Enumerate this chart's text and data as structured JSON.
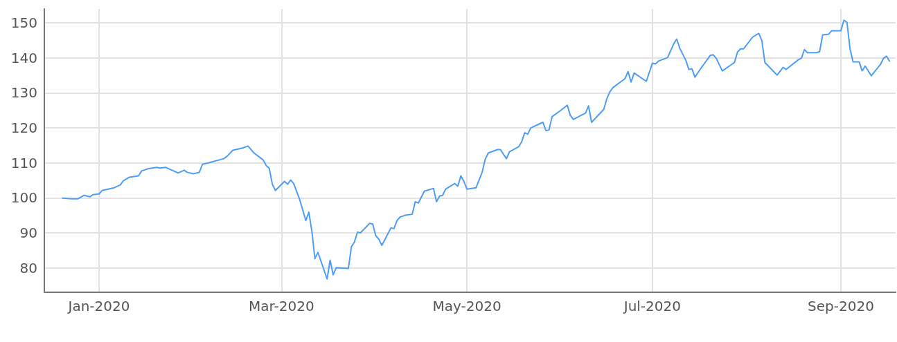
{
  "chart_data": {
    "type": "line",
    "color": "#4e9df5",
    "line_style": "solid",
    "marker": "none",
    "grid": true,
    "x": [
      "2019-12-20",
      "2019-12-23",
      "2019-12-25",
      "2019-12-27",
      "2019-12-29",
      "2019-12-30",
      "2020-01-01",
      "2020-01-02",
      "2020-01-06",
      "2020-01-08",
      "2020-01-09",
      "2020-01-11",
      "2020-01-14",
      "2020-01-15",
      "2020-01-17",
      "2020-01-20",
      "2020-01-21",
      "2020-01-23",
      "2020-01-27",
      "2020-01-29",
      "2020-01-30",
      "2020-02-01",
      "2020-02-03",
      "2020-02-04",
      "2020-02-06",
      "2020-02-11",
      "2020-02-12",
      "2020-02-14",
      "2020-02-17",
      "2020-02-19",
      "2020-02-21",
      "2020-02-24",
      "2020-02-25",
      "2020-02-26",
      "2020-02-27",
      "2020-02-28",
      "2020-03-02",
      "2020-03-03",
      "2020-03-04",
      "2020-03-05",
      "2020-03-07",
      "2020-03-09",
      "2020-03-10",
      "2020-03-11",
      "2020-03-12",
      "2020-03-13",
      "2020-03-16",
      "2020-03-17",
      "2020-03-18",
      "2020-03-19",
      "2020-03-23",
      "2020-03-24",
      "2020-03-25",
      "2020-03-26",
      "2020-03-27",
      "2020-03-30",
      "2020-03-31",
      "2020-04-01",
      "2020-04-02",
      "2020-04-03",
      "2020-04-06",
      "2020-04-07",
      "2020-04-08",
      "2020-04-09",
      "2020-04-11",
      "2020-04-13",
      "2020-04-14",
      "2020-04-15",
      "2020-04-17",
      "2020-04-20",
      "2020-04-21",
      "2020-04-22",
      "2020-04-23",
      "2020-04-24",
      "2020-04-27",
      "2020-04-28",
      "2020-04-29",
      "2020-04-30",
      "2020-05-01",
      "2020-05-04",
      "2020-05-06",
      "2020-05-07",
      "2020-05-08",
      "2020-05-11",
      "2020-05-12",
      "2020-05-14",
      "2020-05-15",
      "2020-05-18",
      "2020-05-19",
      "2020-05-20",
      "2020-05-21",
      "2020-05-22",
      "2020-05-25",
      "2020-05-26",
      "2020-05-27",
      "2020-05-28",
      "2020-05-29",
      "2020-06-01",
      "2020-06-03",
      "2020-06-04",
      "2020-06-05",
      "2020-06-08",
      "2020-06-09",
      "2020-06-10",
      "2020-06-11",
      "2020-06-15",
      "2020-06-16",
      "2020-06-17",
      "2020-06-18",
      "2020-06-22",
      "2020-06-23",
      "2020-06-24",
      "2020-06-25",
      "2020-06-29",
      "2020-07-01",
      "2020-07-02",
      "2020-07-03",
      "2020-07-06",
      "2020-07-08",
      "2020-07-09",
      "2020-07-10",
      "2020-07-12",
      "2020-07-13",
      "2020-07-14",
      "2020-07-15",
      "2020-07-17",
      "2020-07-20",
      "2020-07-21",
      "2020-07-22",
      "2020-07-24",
      "2020-07-27",
      "2020-07-28",
      "2020-07-29",
      "2020-07-30",
      "2020-07-31",
      "2020-08-03",
      "2020-08-05",
      "2020-08-06",
      "2020-08-07",
      "2020-08-09",
      "2020-08-11",
      "2020-08-13",
      "2020-08-14",
      "2020-08-18",
      "2020-08-19",
      "2020-08-20",
      "2020-08-21",
      "2020-08-24",
      "2020-08-25",
      "2020-08-26",
      "2020-08-28",
      "2020-08-29",
      "2020-09-01",
      "2020-09-02",
      "2020-09-03",
      "2020-09-04",
      "2020-09-05",
      "2020-09-07",
      "2020-09-08",
      "2020-09-09",
      "2020-09-11",
      "2020-09-14",
      "2020-09-15",
      "2020-09-16",
      "2020-09-17"
    ],
    "values": [
      99.9,
      99.7,
      99.7,
      100.7,
      100.3,
      100.9,
      101.1,
      102.1,
      102.9,
      103.7,
      104.9,
      105.9,
      106.3,
      107.7,
      108.3,
      108.7,
      108.5,
      108.7,
      107.1,
      107.9,
      107.3,
      106.9,
      107.3,
      109.6,
      110.0,
      111.2,
      111.8,
      113.6,
      114.2,
      114.8,
      112.8,
      110.8,
      109.2,
      108.4,
      103.9,
      102.1,
      104.7,
      103.9,
      105.1,
      104.1,
      99.5,
      93.5,
      95.9,
      90.4,
      82.6,
      84.4,
      76.8,
      82.2,
      78.0,
      80.0,
      79.8,
      86.0,
      87.4,
      90.2,
      90.0,
      92.7,
      92.5,
      89.2,
      88.2,
      86.4,
      91.4,
      91.2,
      93.5,
      94.5,
      95.1,
      95.3,
      98.9,
      98.5,
      101.9,
      102.7,
      98.9,
      100.5,
      100.7,
      102.5,
      104.1,
      103.3,
      106.3,
      104.7,
      102.5,
      102.9,
      107.3,
      111.0,
      112.8,
      113.8,
      113.8,
      111.2,
      113.2,
      114.6,
      116.0,
      118.6,
      118.2,
      120.0,
      121.2,
      121.6,
      119.2,
      119.4,
      123.2,
      125.1,
      126.5,
      123.6,
      122.4,
      123.8,
      124.2,
      126.3,
      121.6,
      125.3,
      128.3,
      130.3,
      131.5,
      134.1,
      136.1,
      133.1,
      135.7,
      133.3,
      138.5,
      138.3,
      139.1,
      140.1,
      144.0,
      145.4,
      142.8,
      139.3,
      136.7,
      136.9,
      134.5,
      137.1,
      140.7,
      140.9,
      139.9,
      136.3,
      138.1,
      138.7,
      141.7,
      142.6,
      142.6,
      146.0,
      147.0,
      145.0,
      138.7,
      136.9,
      135.1,
      137.3,
      136.7,
      139.5,
      139.9,
      142.4,
      141.5,
      141.5,
      141.8,
      146.6,
      146.8,
      147.8,
      147.8,
      150.8,
      150.2,
      142.6,
      138.9,
      138.9,
      136.3,
      137.7,
      134.9,
      138.1,
      139.9,
      140.5,
      139.1
    ],
    "xlim": [
      "2019-12-14",
      "2020-09-19"
    ],
    "xticks": [
      {
        "value": "2020-01-01",
        "label": "Jan-2020"
      },
      {
        "value": "2020-03-01",
        "label": "Mar-2020"
      },
      {
        "value": "2020-05-01",
        "label": "May-2020"
      },
      {
        "value": "2020-07-01",
        "label": "Jul-2020"
      },
      {
        "value": "2020-09-01",
        "label": "Sep-2020"
      }
    ],
    "ylim": [
      73,
      154
    ],
    "yticks": [
      80,
      90,
      100,
      110,
      120,
      130,
      140,
      150
    ]
  }
}
